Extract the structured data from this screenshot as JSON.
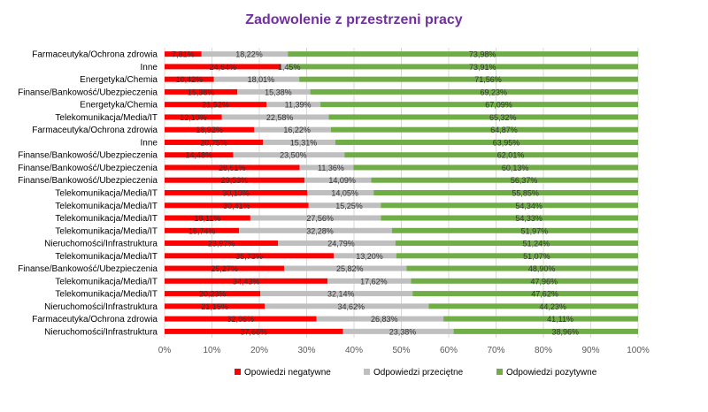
{
  "chart_data": {
    "type": "bar",
    "orientation": "horizontal",
    "stacked": true,
    "title": "Zadowolenie z przestrzeni pracy",
    "categories": [
      "Farmaceutyka/Ochrona zdrowia",
      "Inne",
      "Energetyka/Chemia",
      "Finanse/Bankowość/Ubezpieczenia",
      "Energetyka/Chemia",
      "Telekomunikacja/Media/IT",
      "Farmaceutyka/Ochrona zdrowia",
      "Inne",
      "Finanse/Bankowość/Ubezpieczenia",
      "Finanse/Bankowość/Ubezpieczenia",
      "Finanse/Bankowość/Ubezpieczenia",
      "Telekomunikacja/Media/IT",
      "Telekomunikacja/Media/IT",
      "Telekomunikacja/Media/IT",
      "Telekomunikacja/Media/IT",
      "Nieruchomości/Infrastruktura",
      "Telekomunikacja/Media/IT",
      "Finanse/Bankowość/Ubezpieczenia",
      "Telekomunikacja/Media/IT",
      "Telekomunikacja/Media/IT",
      "Nieruchomości/Infrastruktura",
      "Farmaceutyka/Ochrona zdrowia",
      "Nieruchomości/Infrastruktura"
    ],
    "series": [
      {
        "name": "Opowiedzi negatywne",
        "color": "#ff0000",
        "values": [
          7.81,
          24.64,
          10.42,
          15.38,
          21.52,
          12.1,
          18.92,
          20.75,
          14.48,
          28.51,
          29.53,
          30.1,
          30.41,
          18.11,
          15.74,
          23.97,
          35.73,
          25.27,
          34.43,
          20.23,
          21.15,
          32.06,
          37.66
        ],
        "labels": [
          "7,81%",
          "24,64%",
          "10,42%",
          "15,38%",
          "21,52%",
          "12,10%",
          "18,92%",
          "20,75%",
          "14,48%",
          "28,51%",
          "29,53%",
          "30,10%",
          "30,41%",
          "18,11%",
          "15,74%",
          "23,97%",
          "35,73%",
          "25,27%",
          "34,43%",
          "20,23%",
          "21,15%",
          "32,06%",
          "37,66%"
        ]
      },
      {
        "name": "Odpowiedzi przeciętne",
        "color": "#bfbfbf",
        "values": [
          18.22,
          1.45,
          18.01,
          15.38,
          11.39,
          22.58,
          16.22,
          15.31,
          23.5,
          11.36,
          14.09,
          14.05,
          15.25,
          27.56,
          32.28,
          24.79,
          13.2,
          25.82,
          17.62,
          32.14,
          34.62,
          26.83,
          23.38
        ],
        "labels": [
          "18,22%",
          "1,45%",
          "18,01%",
          "15,38%",
          "11,39%",
          "22,58%",
          "16,22%",
          "15,31%",
          "23,50%",
          "11,36%",
          "14,09%",
          "14,05%",
          "15,25%",
          "27,56%",
          "32,28%",
          "24,79%",
          "13,20%",
          "25,82%",
          "17,62%",
          "32,14%",
          "34,62%",
          "26,83%",
          "23,38%"
        ]
      },
      {
        "name": "Odpowiedzi pozytywne",
        "color": "#70ad47",
        "values": [
          73.98,
          73.91,
          71.56,
          69.23,
          67.09,
          65.32,
          64.87,
          63.95,
          62.01,
          60.13,
          56.37,
          55.85,
          54.34,
          54.33,
          51.97,
          51.24,
          51.07,
          48.9,
          47.96,
          47.62,
          44.23,
          41.11,
          38.96
        ],
        "labels": [
          "73,98%",
          "73,91%",
          "71,56%",
          "69,23%",
          "67,09%",
          "65,32%",
          "64,87%",
          "63,95%",
          "62,01%",
          "60,13%",
          "56,37%",
          "55,85%",
          "54,34%",
          "54,33%",
          "51,97%",
          "51,24%",
          "51,07%",
          "48,90%",
          "47,96%",
          "47,62%",
          "44,23%",
          "41,11%",
          "38,96%"
        ]
      }
    ],
    "xlim": [
      0,
      100
    ],
    "x_ticks": [
      "0%",
      "10%",
      "20%",
      "30%",
      "40%",
      "50%",
      "60%",
      "70%",
      "80%",
      "90%",
      "100%"
    ],
    "grid": true,
    "legend": "bottom"
  }
}
